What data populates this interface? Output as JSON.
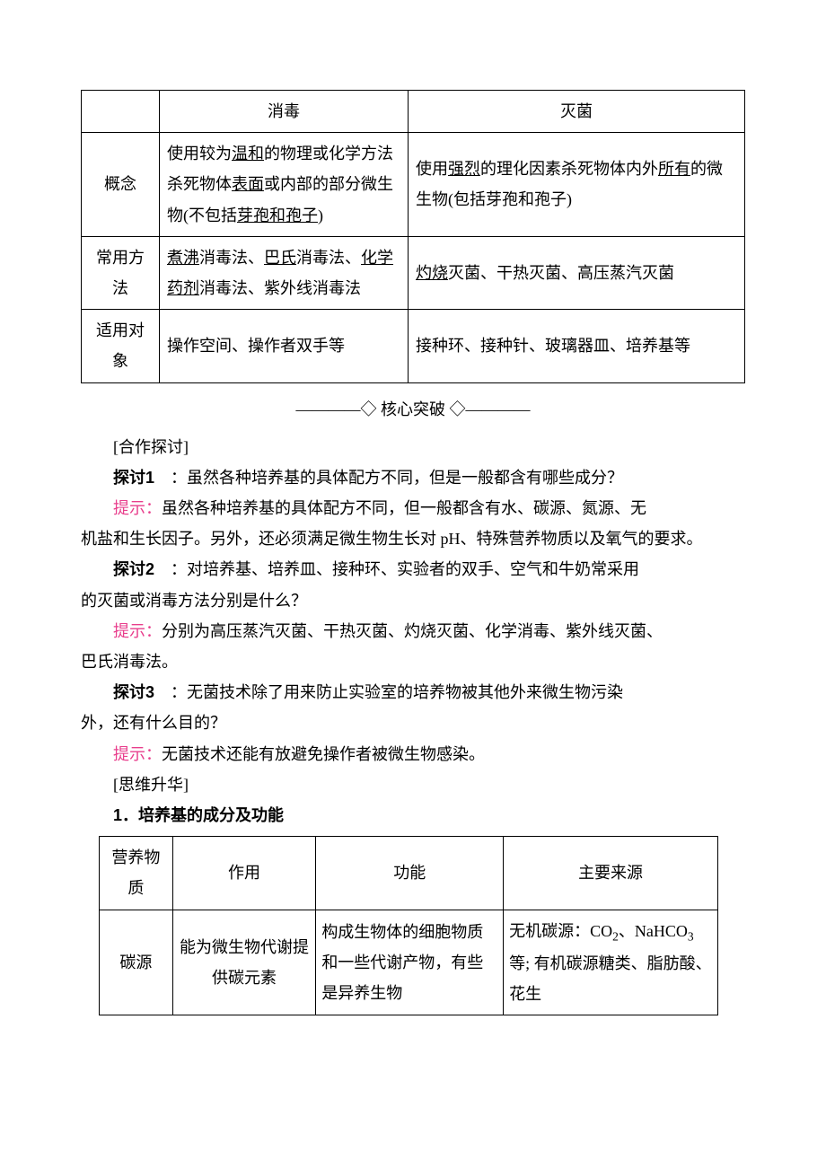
{
  "table1": {
    "header": {
      "c1": "",
      "c2": "消毒",
      "c3": "灭菌"
    },
    "rows": [
      {
        "label": "概念",
        "c2_parts": [
          "使用较为",
          "温和",
          "的物理或化学方法杀死物体",
          "表面",
          "或内部的部分微生物(不包括",
          "芽孢和孢子",
          ")"
        ],
        "c3_parts": [
          "使用",
          "强烈",
          "的理化因素杀死物体内外",
          "所有",
          "的微生物(包括芽孢和孢子)"
        ]
      },
      {
        "label": "常用方法",
        "c2_parts_m": [
          "煮沸",
          "消毒法、",
          "巴氏",
          "消毒法、",
          "化学药剂",
          "消毒法、紫外线消毒法"
        ],
        "c3_parts_m": [
          "灼烧",
          "灭菌、干热灭菌、高压蒸汽灭菌"
        ]
      },
      {
        "label": "适用对象",
        "c2": "操作空间、操作者双手等",
        "c3": "接种环、接种针、玻璃器皿、培养基等"
      }
    ]
  },
  "divider": "————◇ 核心突破 ◇————",
  "cooperate": "[合作探讨]",
  "q1_label": "探讨1",
  "q1_text": "　：虽然各种培养基的具体配方不同，但是一般都含有哪些成分？",
  "a_label": "提示：",
  "a1a": "虽然各种培养基的具体配方不同，但一般都含有水、碳源、氮源、无",
  "a1b": "机盐和生长因子。另外，还必须满足微生物生长对 pH、特殊营养物质以及氧气的要求。",
  "q2_label": "探讨2",
  "q2_text": "　：对培养基、培养皿、接种环、实验者的双手、空气和牛奶常采用",
  "q2_text2": "的灭菌或消毒方法分别是什么？",
  "a2a": "分别为高压蒸汽灭菌、干热灭菌、灼烧灭菌、化学消毒、紫外线灭菌、",
  "a2b": "巴氏消毒法。",
  "q3_label": "探讨3",
  "q3_text": "　：无菌技术除了用来防止实验室的培养物被其他外来微生物污染",
  "q3_text2": "外，还有什么目的？",
  "a3": "无菌技术还能有放避免操作者被微生物感染。",
  "think": "[思维升华]",
  "sec1": "1．培养基的成分及功能",
  "table2": {
    "header": {
      "c1": "营养物质",
      "c2": "作用",
      "c3": "功能",
      "c4": "主要来源"
    },
    "row1": {
      "c1": "碳源",
      "c2": "能为微生物代谢提供碳元素",
      "c3": "构成生物体的细胞物质和一些代谢产物，有些是异养生物",
      "c4_pre": "无机碳源：CO",
      "c4_sub1": "2",
      "c4_mid": "、NaHCO",
      "c4_sub2": "3",
      "c4_post": " 等; 有机碳源糖类、脂肪酸、花生"
    }
  },
  "colors": {
    "pink": "#e83e8c",
    "text": "#000000",
    "background": "#ffffff",
    "border": "#000000"
  }
}
